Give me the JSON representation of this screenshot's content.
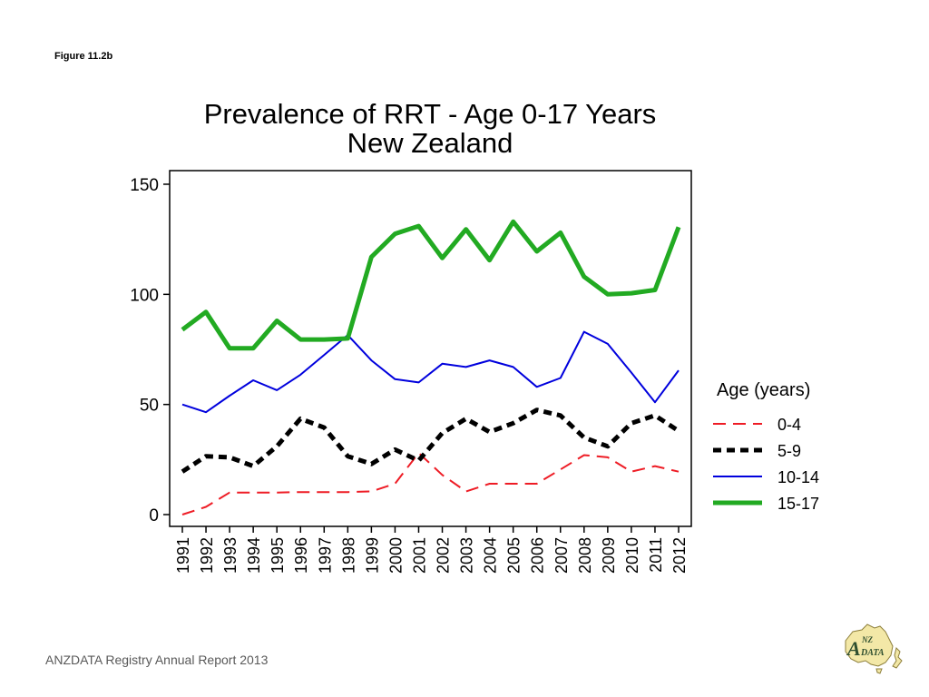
{
  "figure_label": "Figure 11.2b",
  "footer": "ANZDATA Registry Annual Report 2013",
  "logo": {
    "text_a": "A",
    "text_nz": "NZ",
    "text_data": "DATA"
  },
  "colors": {
    "background": "#ffffff",
    "logo_fill": "#f3e8a7",
    "logo_text": "#2f4f2f"
  },
  "chart_data": {
    "type": "line",
    "title": "Prevalence of RRT - Age 0-17 Years",
    "subtitle": "New Zealand",
    "xlabel": "",
    "ylabel": "",
    "ylim": [
      0,
      155
    ],
    "yticks": [
      0,
      50,
      100,
      150
    ],
    "grid": false,
    "legend_title": "Age (years)",
    "legend_position": "right",
    "x": [
      "1991",
      "1992",
      "1993",
      "1994",
      "1995",
      "1996",
      "1997",
      "1998",
      "1999",
      "2000",
      "2001",
      "2002",
      "2003",
      "2004",
      "2005",
      "2006",
      "2007",
      "2008",
      "2009",
      "2010",
      "2011",
      "2012"
    ],
    "series": [
      {
        "name": "0-4",
        "color": "#ee1c25",
        "style": "dashed",
        "values": [
          0,
          3.5,
          10,
          10,
          10,
          10.2,
          10.2,
          10.2,
          10.5,
          14,
          28,
          18,
          10.5,
          14,
          14,
          14,
          20.5,
          27,
          26,
          19.5,
          22,
          19.5
        ]
      },
      {
        "name": "5-9",
        "color": "#000000",
        "style": "dotted",
        "values": [
          19.5,
          26.5,
          26,
          22,
          31,
          43.5,
          39.5,
          26.5,
          23,
          29.5,
          24.5,
          37,
          43.5,
          37.5,
          41.5,
          47.5,
          45,
          35,
          31,
          41.5,
          45,
          38
        ]
      },
      {
        "name": "10-14",
        "color": "#0000dd",
        "style": "solid",
        "values": [
          50,
          46.5,
          54,
          61,
          56.5,
          63.5,
          72.5,
          81.5,
          70,
          61.5,
          60,
          68.5,
          67,
          70,
          67,
          58,
          62,
          83,
          77.5,
          64.5,
          51,
          65.5
        ]
      },
      {
        "name": "15-17",
        "color": "#22aa22",
        "style": "thick",
        "values": [
          84,
          92,
          75.5,
          75.5,
          88,
          79.5,
          79.5,
          80,
          117,
          127.5,
          131,
          116.5,
          129.5,
          115.5,
          133,
          119.5,
          128,
          108,
          100,
          100.5,
          102,
          130.5
        ]
      }
    ]
  }
}
